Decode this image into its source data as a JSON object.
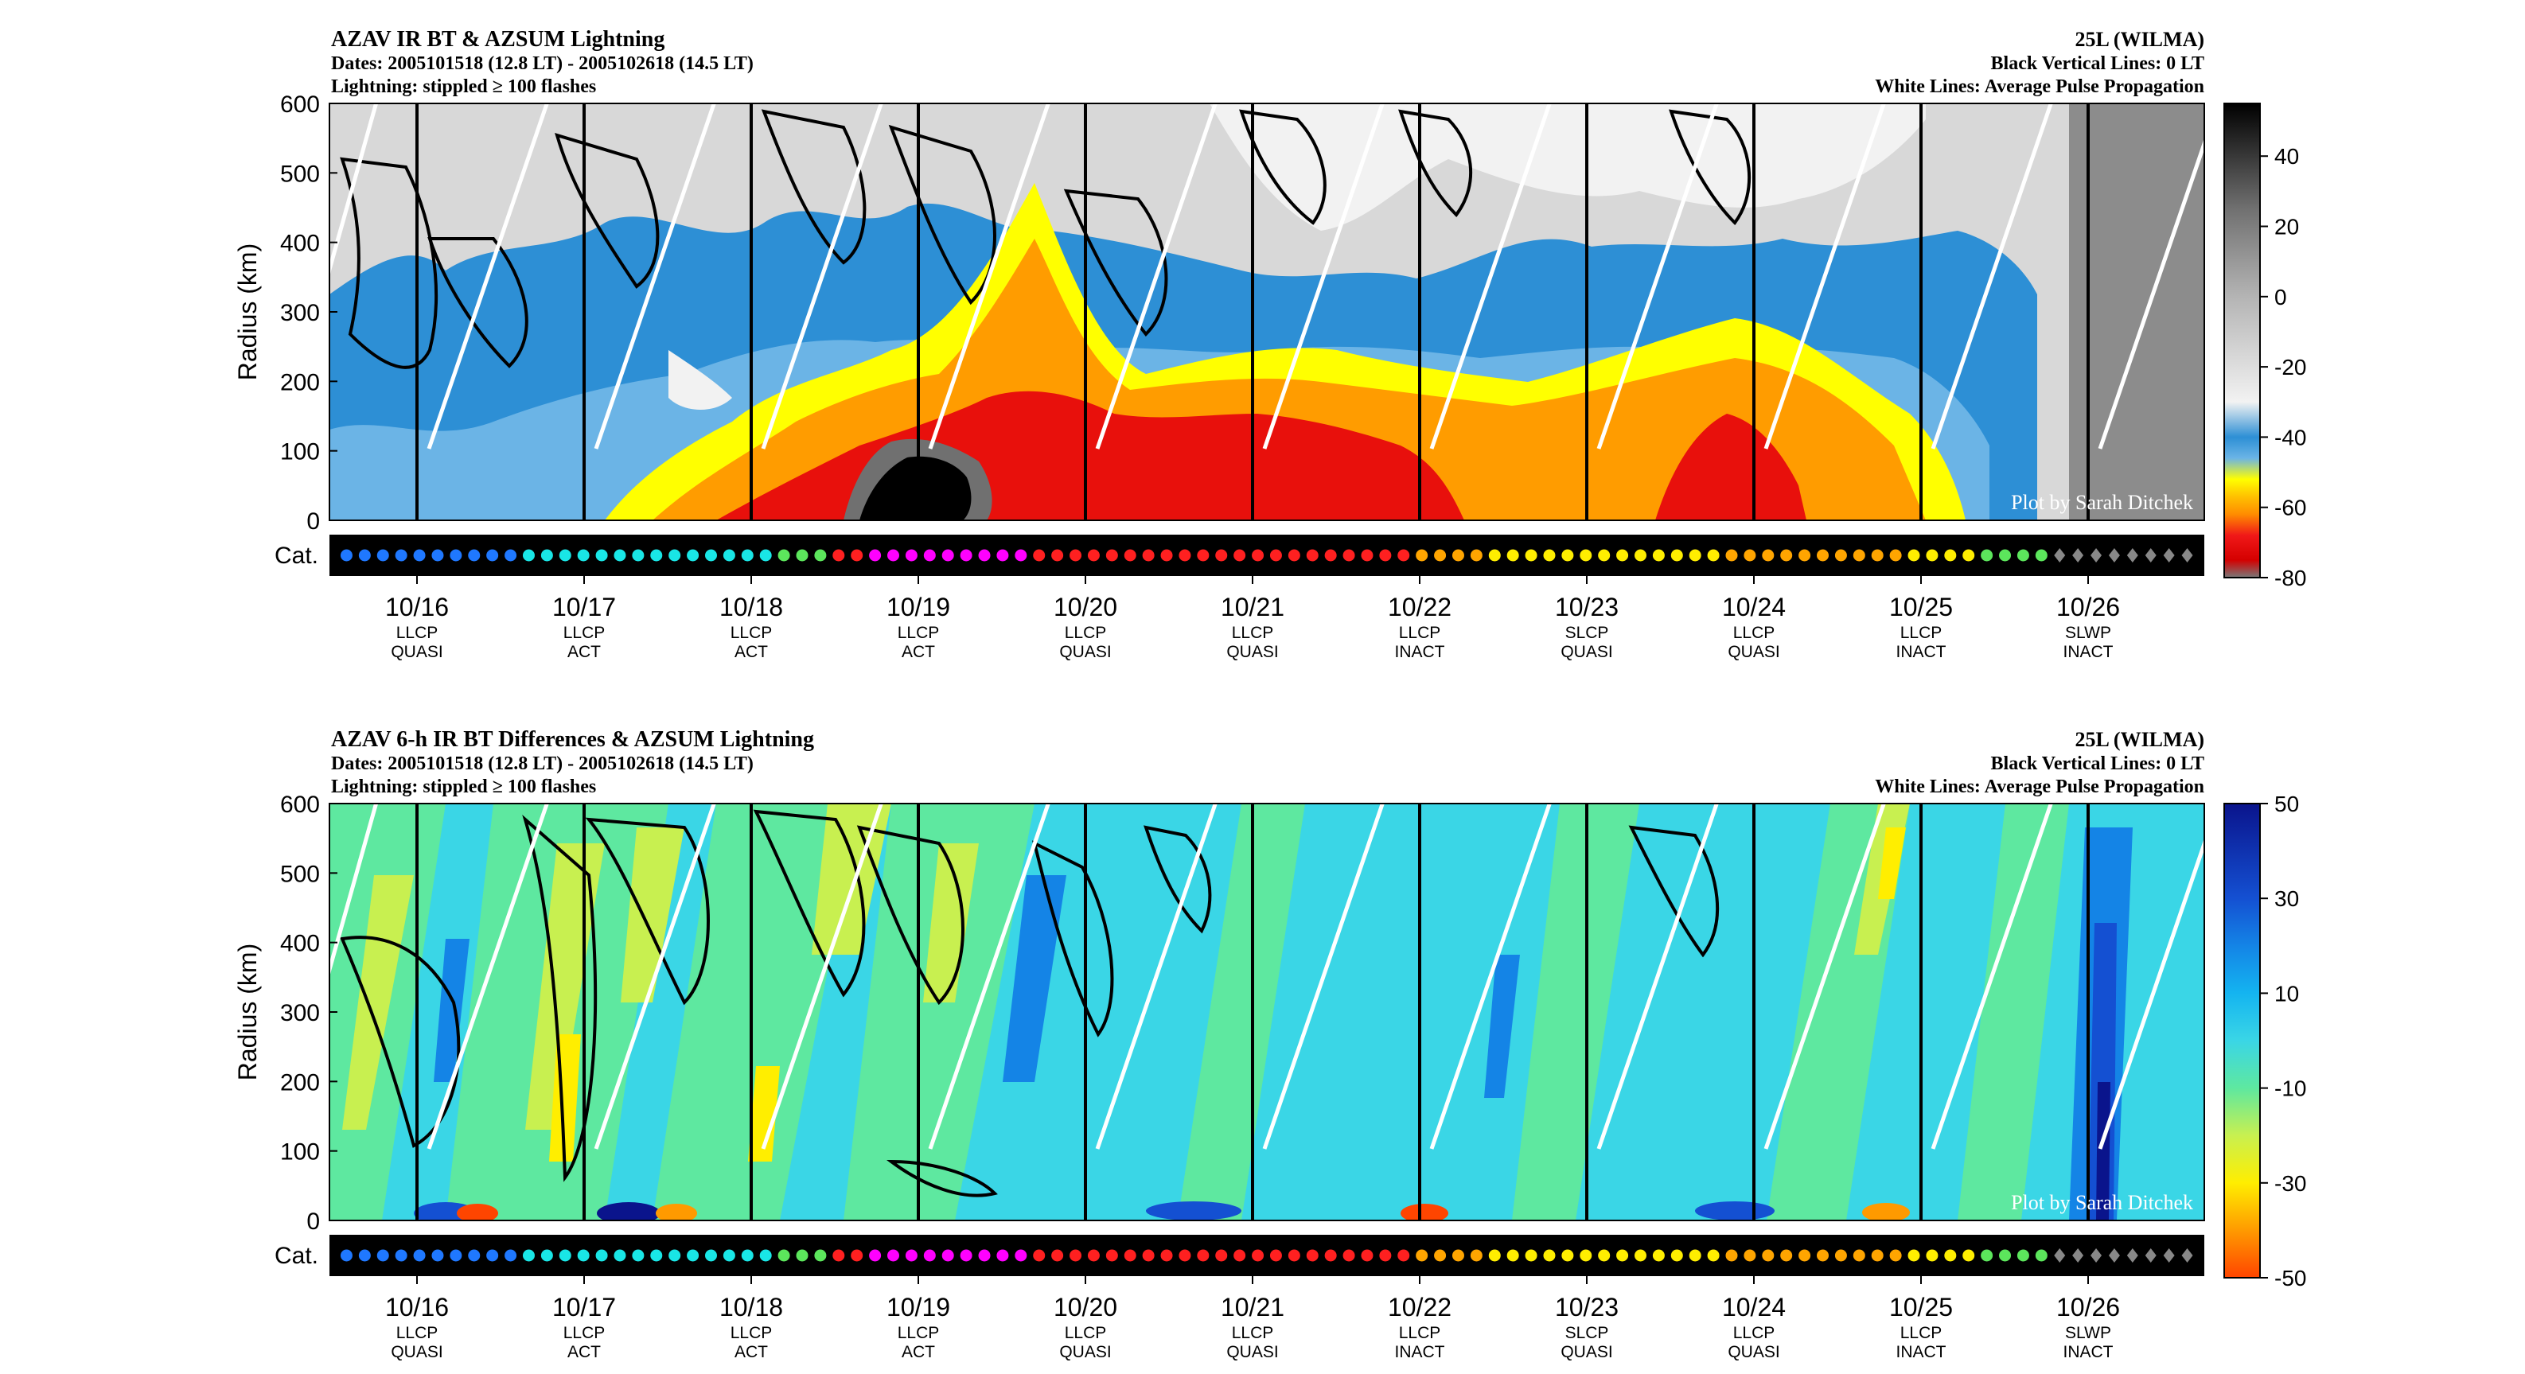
{
  "chart_data": [
    {
      "type": "heatmap",
      "title": "AZAV IR BT & AZSUM Lightning",
      "dates_line": "Dates: 2005101518 (12.8 LT) - 2005102618 (14.5 LT)",
      "lightning_line": "Lightning: stippled ≥ 100 flashes",
      "storm": "25L (WILMA)",
      "black_lines_note": "Black Vertical Lines: 0 LT",
      "white_lines_note": "White Lines: Average Pulse Propagation",
      "ylabel": "Radius (km)",
      "ylim": [
        0,
        600
      ],
      "yticks": [
        "600",
        "500",
        "400",
        "300",
        "200",
        "100",
        "0"
      ],
      "category_label": "Cat.",
      "credit": "Plot by Sarah Ditchek",
      "colorbar": {
        "range": [
          -80,
          55
        ],
        "ticks": [
          "40",
          "20",
          "0",
          "-20",
          "-40",
          "-60",
          "-80"
        ],
        "tick_values": [
          40,
          20,
          0,
          -20,
          -40,
          -60,
          -80
        ],
        "stops": [
          {
            "v": -80,
            "c": "#787878"
          },
          {
            "v": -75,
            "c": "#d40000"
          },
          {
            "v": -68,
            "c": "#f01818"
          },
          {
            "v": -62,
            "c": "#ff8c00"
          },
          {
            "v": -57,
            "c": "#ffc000"
          },
          {
            "v": -52,
            "c": "#ffff00"
          },
          {
            "v": -46,
            "c": "#6bb4e6"
          },
          {
            "v": -40,
            "c": "#2d8fd5"
          },
          {
            "v": -30,
            "c": "#f2f2f2"
          },
          {
            "v": 0,
            "c": "#b4b4b4"
          },
          {
            "v": 25,
            "c": "#707070"
          },
          {
            "v": 55,
            "c": "#000000"
          }
        ]
      },
      "day_labels": [
        "10/16",
        "10/17",
        "10/18",
        "10/19",
        "10/20",
        "10/21",
        "10/22",
        "10/23",
        "10/24",
        "10/25",
        "10/26"
      ],
      "day_codes": [
        [
          "LLCP",
          "QUASI"
        ],
        [
          "LLCP",
          "ACT"
        ],
        [
          "LLCP",
          "ACT"
        ],
        [
          "LLCP",
          "ACT"
        ],
        [
          "LLCP",
          "QUASI"
        ],
        [
          "LLCP",
          "QUASI"
        ],
        [
          "LLCP",
          "INACT"
        ],
        [
          "SLCP",
          "QUASI"
        ],
        [
          "LLCP",
          "QUASI"
        ],
        [
          "LLCP",
          "INACT"
        ],
        [
          "SLWP",
          "INACT"
        ]
      ],
      "category_colors": {
        "TS": "#1f78ff",
        "C1": "#19e6e6",
        "C2": "#5ce65c",
        "C3": "#ffa500",
        "C4": "#ff2020",
        "C5": "#ff00ff",
        "TD": "#888888",
        "C1b": "#ffee00"
      }
    },
    {
      "type": "heatmap",
      "title": "AZAV 6-h IR BT Differences & AZSUM Lightning",
      "dates_line": "Dates: 2005101518 (12.8 LT) - 2005102618 (14.5 LT)",
      "lightning_line": "Lightning: stippled ≥ 100 flashes",
      "storm": "25L (WILMA)",
      "black_lines_note": "Black Vertical Lines: 0 LT",
      "white_lines_note": "White Lines: Average Pulse Propagation",
      "ylabel": "Radius (km)",
      "ylim": [
        0,
        600
      ],
      "yticks": [
        "600",
        "500",
        "400",
        "300",
        "200",
        "100",
        "0"
      ],
      "category_label": "Cat.",
      "credit": "Plot by Sarah Ditchek",
      "colorbar": {
        "range": [
          -50,
          50
        ],
        "ticks": [
          "50",
          "30",
          "10",
          "-10",
          "-30",
          "-50"
        ],
        "tick_values": [
          50,
          30,
          10,
          -10,
          -30,
          -50
        ],
        "stops": [
          {
            "v": -50,
            "c": "#ff4500"
          },
          {
            "v": -40,
            "c": "#ff9a00"
          },
          {
            "v": -30,
            "c": "#ffee00"
          },
          {
            "v": -20,
            "c": "#c8f050"
          },
          {
            "v": -10,
            "c": "#5ee8a0"
          },
          {
            "v": 0,
            "c": "#3ad6e6"
          },
          {
            "v": 10,
            "c": "#14b4f0"
          },
          {
            "v": 20,
            "c": "#1484e6"
          },
          {
            "v": 30,
            "c": "#1450d2"
          },
          {
            "v": 50,
            "c": "#0a148c"
          }
        ]
      },
      "day_labels": [
        "10/16",
        "10/17",
        "10/18",
        "10/19",
        "10/20",
        "10/21",
        "10/22",
        "10/23",
        "10/24",
        "10/25",
        "10/26"
      ],
      "day_codes": [
        [
          "LLCP",
          "QUASI"
        ],
        [
          "LLCP",
          "ACT"
        ],
        [
          "LLCP",
          "ACT"
        ],
        [
          "LLCP",
          "ACT"
        ],
        [
          "LLCP",
          "QUASI"
        ],
        [
          "LLCP",
          "QUASI"
        ],
        [
          "LLCP",
          "INACT"
        ],
        [
          "SLCP",
          "QUASI"
        ],
        [
          "LLCP",
          "QUASI"
        ],
        [
          "LLCP",
          "INACT"
        ],
        [
          "SLWP",
          "INACT"
        ]
      ]
    }
  ]
}
